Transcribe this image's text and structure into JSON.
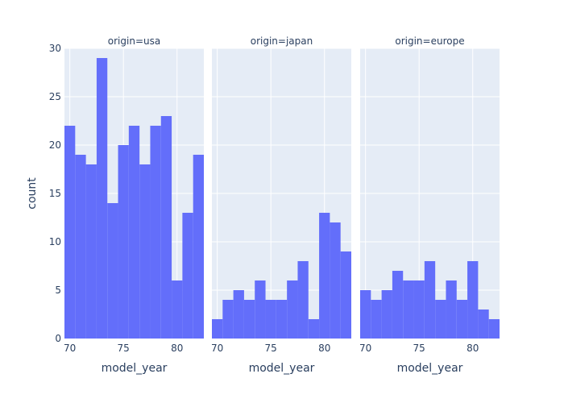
{
  "chart_data": {
    "type": "bar",
    "ylabel": "count",
    "xlabel": "model_year",
    "ylim": [
      0,
      30
    ],
    "yticks": [
      0,
      5,
      10,
      15,
      20,
      25,
      30
    ],
    "xlim": [
      69.5,
      82.5
    ],
    "xticks": [
      70,
      75,
      80
    ],
    "bin_width": 1,
    "bar_color": "#636EFA",
    "grid": true,
    "panels": [
      {
        "title": "origin=usa",
        "x": [
          70,
          71,
          72,
          73,
          74,
          75,
          76,
          77,
          78,
          79,
          80,
          81,
          82
        ],
        "values": [
          22,
          19,
          18,
          29,
          14,
          20,
          22,
          18,
          22,
          23,
          6,
          13,
          19
        ]
      },
      {
        "title": "origin=japan",
        "x": [
          70,
          71,
          72,
          73,
          74,
          75,
          76,
          77,
          78,
          79,
          80,
          81,
          82
        ],
        "values": [
          2,
          4,
          5,
          4,
          6,
          4,
          4,
          6,
          8,
          2,
          13,
          12,
          9
        ]
      },
      {
        "title": "origin=europe",
        "x": [
          70,
          71,
          72,
          73,
          74,
          75,
          76,
          77,
          78,
          79,
          80,
          81,
          82
        ],
        "values": [
          5,
          4,
          5,
          7,
          6,
          6,
          8,
          4,
          6,
          4,
          8,
          3,
          2
        ]
      }
    ]
  }
}
